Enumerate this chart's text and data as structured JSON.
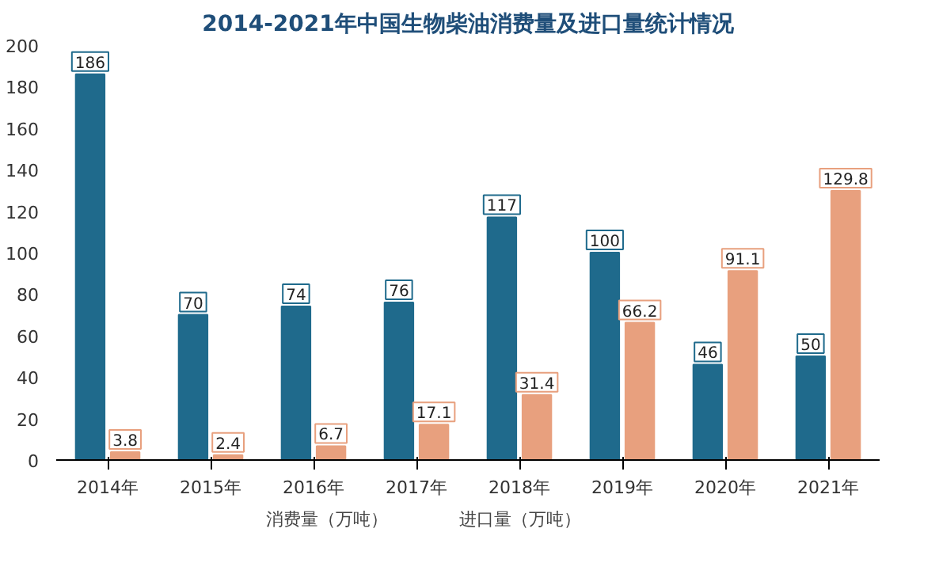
{
  "chart_data": {
    "type": "bar",
    "title": "2014-2021年中国生物柴油消费量及进口量统计情况",
    "categories": [
      "2014年",
      "2015年",
      "2016年",
      "2017年",
      "2018年",
      "2019年",
      "2020年",
      "2021年"
    ],
    "series": [
      {
        "name": "消费量（万吨）",
        "color": "#1f6a8c",
        "values": [
          186,
          70,
          74,
          76,
          117,
          100,
          46,
          50
        ]
      },
      {
        "name": "进口量（万吨）",
        "color": "#e8a07e",
        "values": [
          3.8,
          2.4,
          6.7,
          17.1,
          31.4,
          66.2,
          91.1,
          129.8
        ]
      }
    ],
    "ylim": [
      0,
      200
    ],
    "yticks": [
      0,
      20,
      40,
      60,
      80,
      100,
      120,
      140,
      160,
      180,
      200
    ],
    "data_labels": true,
    "grid": false,
    "legend": "bottom"
  }
}
